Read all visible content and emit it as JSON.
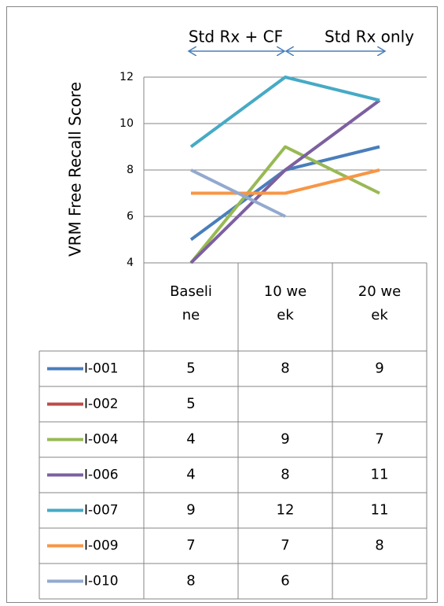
{
  "chart_data": {
    "type": "line",
    "y_label": "VRM Free Recall Score",
    "annotations": [
      "Std Rx + CF",
      "Std Rx only"
    ],
    "categories": [
      "Baseline",
      "10 week",
      "20 week"
    ],
    "ylim": [
      4,
      12
    ],
    "yticks": [
      4,
      6,
      8,
      10,
      12
    ],
    "grid": true,
    "series": [
      {
        "name": "I-001",
        "color": "#4a7ebb",
        "values": [
          5,
          8,
          9
        ]
      },
      {
        "name": "I-002",
        "color": "#be4b48",
        "values": [
          5,
          null,
          null
        ]
      },
      {
        "name": "I-004",
        "color": "#98b954",
        "values": [
          4,
          9,
          7
        ]
      },
      {
        "name": "I-006",
        "color": "#7d60a0",
        "values": [
          4,
          8,
          11
        ]
      },
      {
        "name": "I-007",
        "color": "#46aac5",
        "values": [
          9,
          12,
          11
        ]
      },
      {
        "name": "I-009",
        "color": "#f79646",
        "values": [
          7,
          7,
          8
        ]
      },
      {
        "name": "I-010",
        "color": "#93a9cf",
        "values": [
          8,
          6,
          null
        ]
      }
    ]
  }
}
